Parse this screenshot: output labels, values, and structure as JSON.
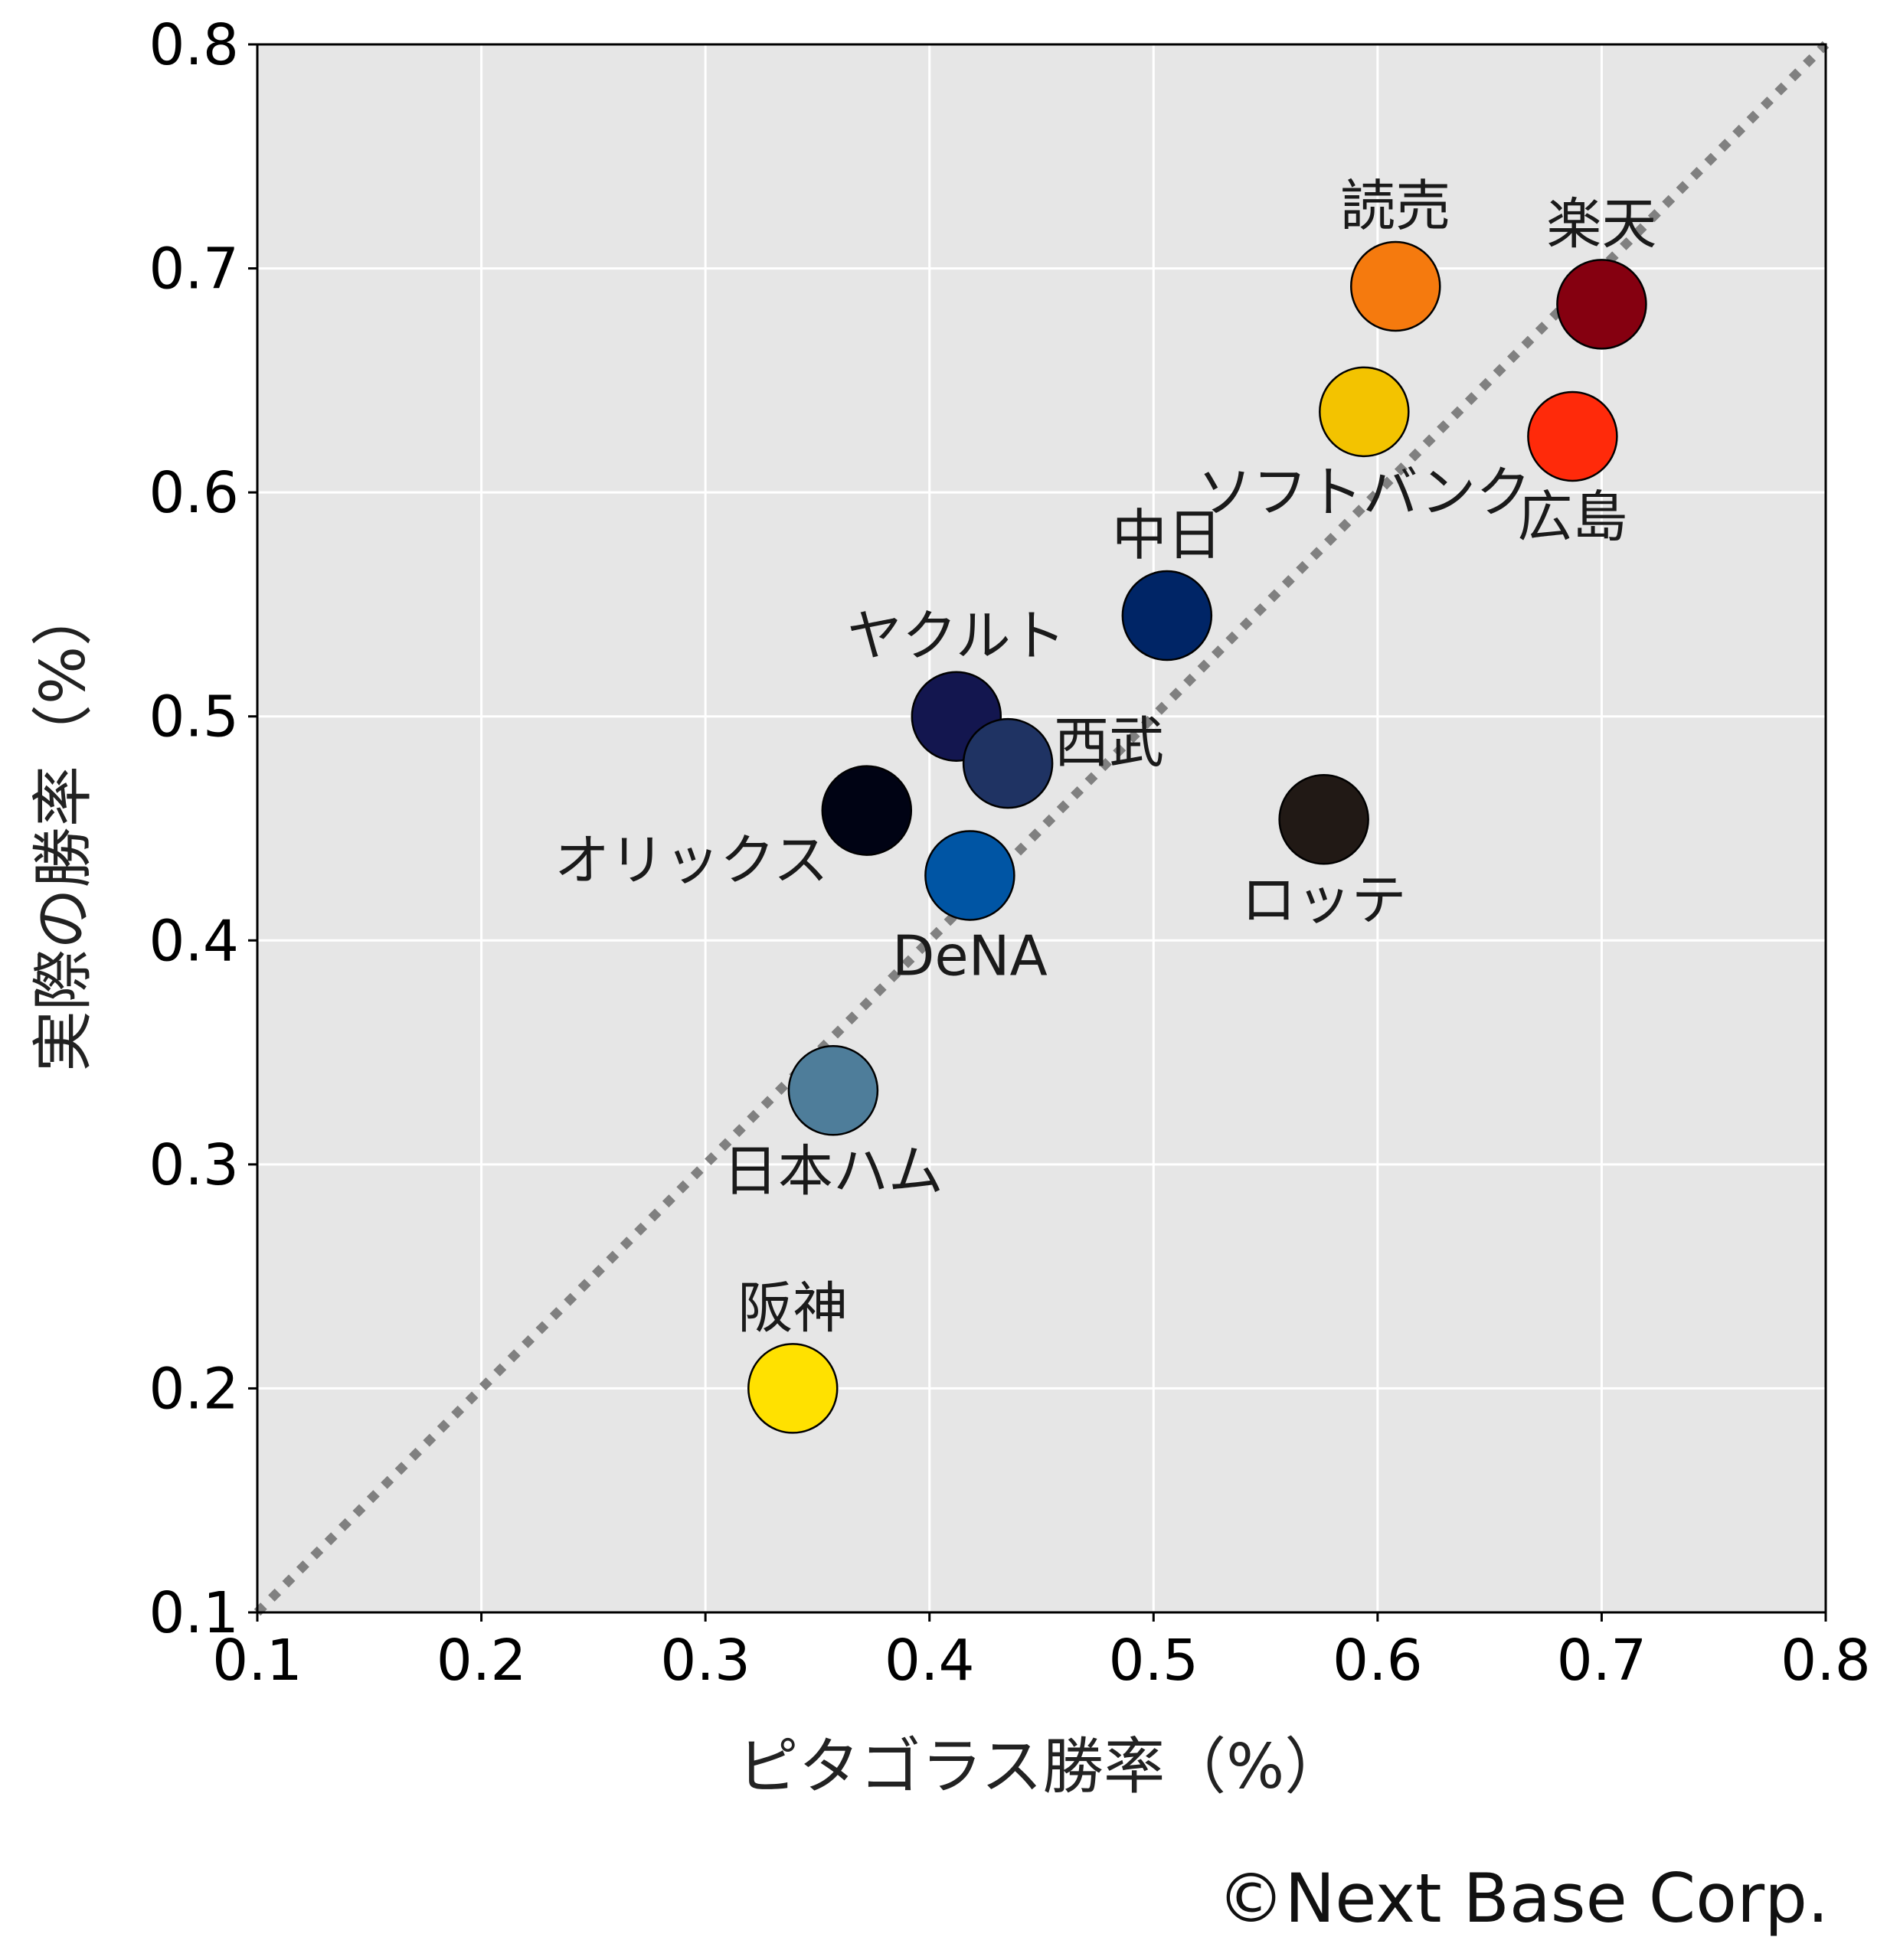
{
  "chart_data": {
    "type": "scatter",
    "title": "",
    "xlabel": "ピタゴラス勝率（%）",
    "ylabel": "実際の勝率（%）",
    "xlim": [
      0.1,
      0.8
    ],
    "ylim": [
      0.1,
      0.8
    ],
    "xticks": [
      "0.1",
      "0.2",
      "0.3",
      "0.4",
      "0.5",
      "0.6",
      "0.7",
      "0.8"
    ],
    "yticks": [
      "0.1",
      "0.2",
      "0.3",
      "0.4",
      "0.5",
      "0.6",
      "0.7",
      "0.8"
    ],
    "grid": true,
    "background": "#e6e6e6",
    "reference_line": {
      "style": "dotted",
      "color": "#808080",
      "from": [
        0.1,
        0.1
      ],
      "to": [
        0.8,
        0.8
      ]
    },
    "points": [
      {
        "label": "読売",
        "x": 0.608,
        "y": 0.692,
        "color": "#f57a0e",
        "label_pos": "above"
      },
      {
        "label": "楽天",
        "x": 0.7,
        "y": 0.684,
        "color": "#850010",
        "label_pos": "above"
      },
      {
        "label": "ソフトバンク",
        "x": 0.594,
        "y": 0.636,
        "color": "#f3c300",
        "label_pos": "below"
      },
      {
        "label": "広島",
        "x": 0.687,
        "y": 0.625,
        "color": "#ff2a0a",
        "label_pos": "below"
      },
      {
        "label": "中日",
        "x": 0.506,
        "y": 0.545,
        "color": "#002566",
        "label_pos": "above"
      },
      {
        "label": "ヤクルト",
        "x": 0.412,
        "y": 0.5,
        "color": "#13164f",
        "label_pos": "above"
      },
      {
        "label": "西武",
        "x": 0.435,
        "y": 0.479,
        "color": "#1f3363",
        "label_pos": "right"
      },
      {
        "label": "オリックス",
        "x": 0.372,
        "y": 0.458,
        "color": "#000314",
        "label_pos": "below-left"
      },
      {
        "label": "ロッテ",
        "x": 0.576,
        "y": 0.454,
        "color": "#211915",
        "label_pos": "below"
      },
      {
        "label": "DeNA",
        "x": 0.418,
        "y": 0.429,
        "color": "#0055a4",
        "label_pos": "below"
      },
      {
        "label": "日本ハム",
        "x": 0.357,
        "y": 0.333,
        "color": "#4e7d9a",
        "label_pos": "below"
      },
      {
        "label": "阪神",
        "x": 0.339,
        "y": 0.2,
        "color": "#ffe100",
        "label_pos": "above"
      }
    ]
  },
  "credit": "©Next Base Corp."
}
